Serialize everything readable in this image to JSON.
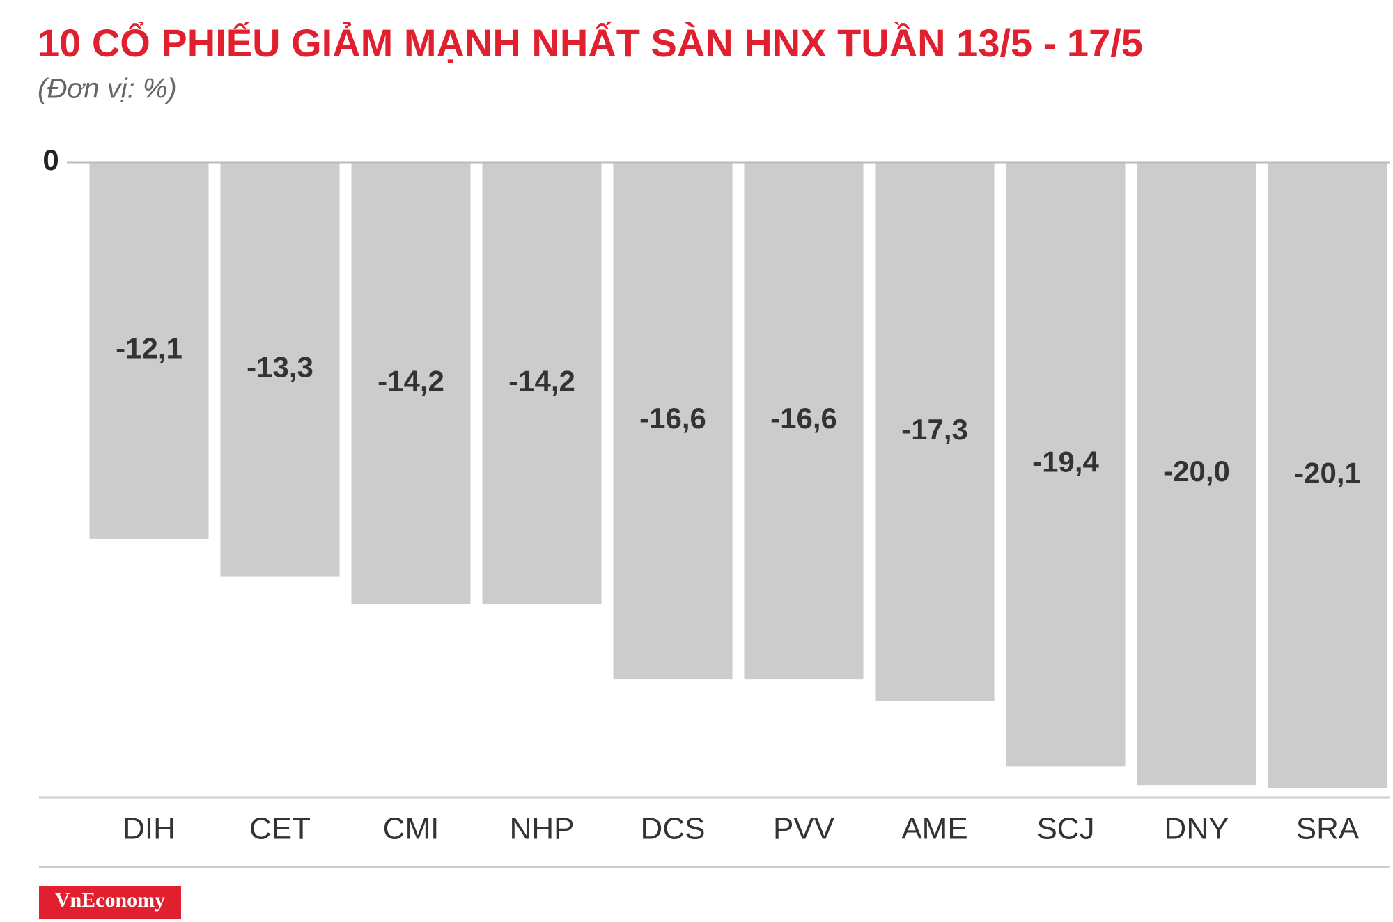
{
  "chart_data": {
    "type": "bar",
    "title": "10 CỔ PHIẾU GIẢM MẠNH NHẤT SÀN HNX TUẦN 13/5 - 17/5",
    "subtitle": "(Đơn vị: %)",
    "categories": [
      "DIH",
      "CET",
      "CMI",
      "NHP",
      "DCS",
      "PVV",
      "AME",
      "SCJ",
      "DNY",
      "SRA"
    ],
    "values": [
      -12.1,
      -13.3,
      -14.2,
      -14.2,
      -16.6,
      -16.6,
      -17.3,
      -19.4,
      -20.0,
      -20.1
    ],
    "value_labels": [
      "-12,1",
      "-13,3",
      "-14,2",
      "-14,2",
      "-16,6",
      "-16,6",
      "-17,3",
      "-19,4",
      "-20,0",
      "-20,1"
    ],
    "color": "#cdcccd",
    "ylim": [
      -20.4,
      0
    ],
    "yticks": [
      0
    ],
    "brand": "VnEconomy"
  }
}
